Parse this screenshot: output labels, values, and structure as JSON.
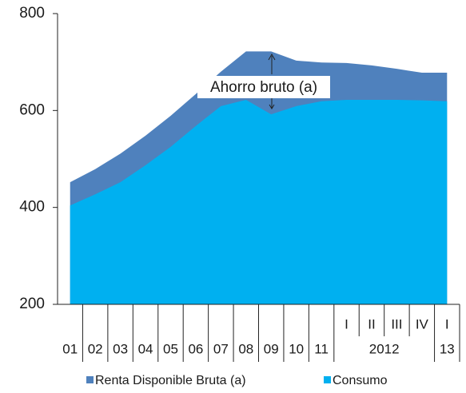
{
  "chart_data": {
    "type": "area",
    "categories": [
      "01",
      "02",
      "03",
      "04",
      "05",
      "06",
      "07",
      "08",
      "09",
      "10",
      "11",
      "I",
      "II",
      "III",
      "IV",
      "I"
    ],
    "category_groups": [
      null,
      null,
      null,
      null,
      null,
      null,
      null,
      null,
      null,
      null,
      null,
      "2012",
      "2012",
      "2012",
      "2012",
      "13"
    ],
    "series": [
      {
        "name": "Renta Disponible Bruta (a)",
        "color": "#4f81bd",
        "values": [
          452,
          479,
          511,
          548,
          589,
          634,
          680,
          722,
          722,
          703,
          699,
          698,
          693,
          686,
          678,
          678
        ]
      },
      {
        "name": "Consumo",
        "color": "#00b0f0",
        "values": [
          404,
          427,
          452,
          487,
          525,
          568,
          609,
          622,
          592,
          609,
          619,
          622,
          622,
          622,
          621,
          619
        ]
      }
    ],
    "annotation": "Ahorro bruto (a)",
    "ylim": [
      200,
      800
    ],
    "yticks": [
      200,
      400,
      600,
      800
    ],
    "grid": false
  }
}
